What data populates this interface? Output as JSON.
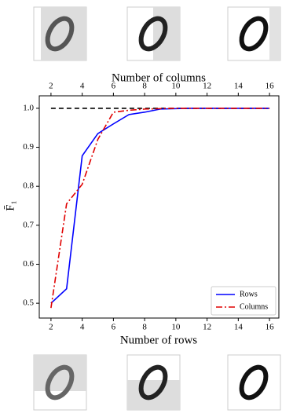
{
  "chart_data": {
    "type": "line",
    "xlabel": "Number of rows",
    "x2label": "Number of columns",
    "ylabel": "F̄₁",
    "x": [
      2,
      3,
      4,
      5,
      6,
      7,
      8,
      9,
      10,
      11,
      12,
      13,
      14,
      15,
      16
    ],
    "series": [
      {
        "name": "Rows",
        "color": "#0000ff",
        "dash": "solid",
        "values": [
          0.5,
          0.537,
          0.878,
          0.935,
          0.96,
          0.984,
          0.99,
          0.998,
          0.999,
          1.0,
          1.0,
          1.0,
          1.0,
          1.0,
          1.0
        ]
      },
      {
        "name": "Columns",
        "color": "#e00000",
        "dash": "dashdot",
        "values": [
          0.488,
          0.755,
          0.805,
          0.92,
          0.99,
          0.995,
          0.998,
          0.999,
          1.0,
          1.0,
          1.0,
          1.0,
          1.0,
          1.0,
          1.0
        ]
      }
    ],
    "reference_line": {
      "value": 1.0,
      "color": "#000000"
    },
    "xlim": [
      1.25,
      16.6
    ],
    "xticks": [
      2,
      4,
      6,
      8,
      10,
      12,
      14,
      16
    ],
    "x2lim": [
      1.25,
      16.6
    ],
    "x2ticks": [
      2,
      4,
      6,
      8,
      10,
      12,
      14,
      16
    ],
    "ylim": [
      0.462,
      1.032
    ],
    "yticks": [
      {
        "value": 0.5,
        "label": "0.5"
      },
      {
        "value": 0.6,
        "label": "0.6"
      },
      {
        "value": 0.7,
        "label": "0.7"
      },
      {
        "value": 0.8,
        "label": "0.8"
      },
      {
        "value": 0.9,
        "label": "0.9"
      },
      {
        "value": 1.0,
        "label": "1.0"
      }
    ],
    "legend": "lower right"
  }
}
